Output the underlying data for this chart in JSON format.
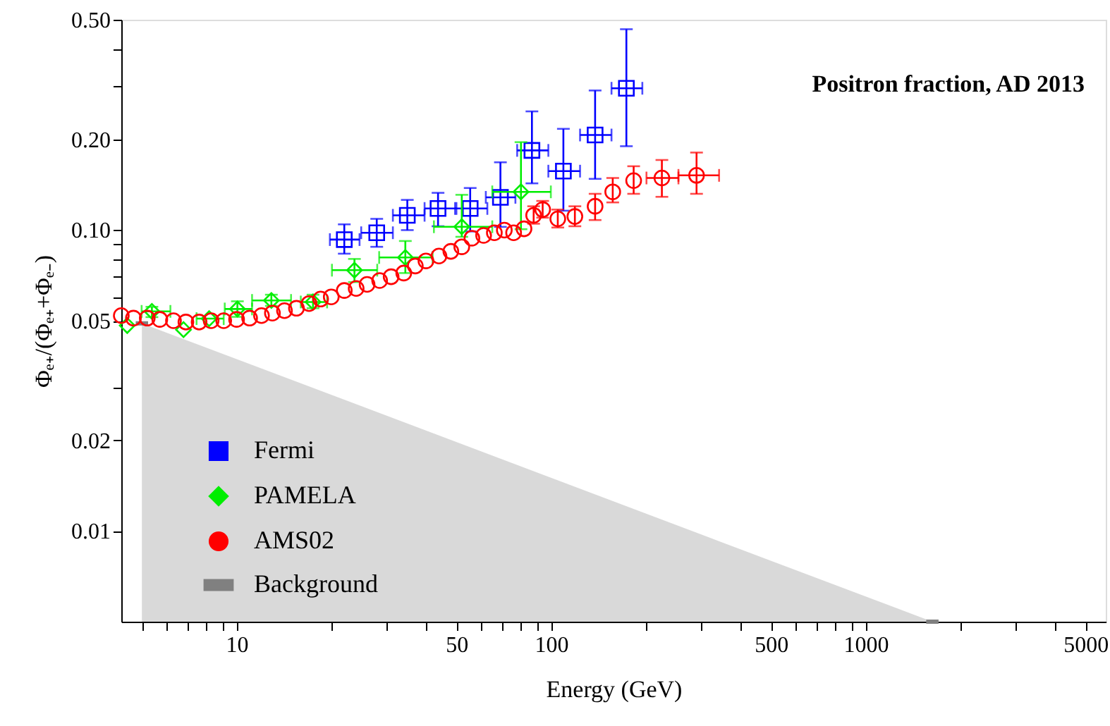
{
  "chart_data": {
    "type": "scatter",
    "title": "Positron fraction, AD 2013",
    "xlabel": "Energy (GeV)",
    "ylabel": "Φₑ₊/(Φₑ₊+Φₑ₋)",
    "log": "xy",
    "grid": false,
    "legend": "bottom left",
    "xlim": [
      4.3,
      5800
    ],
    "ylim": [
      0.005,
      0.5
    ],
    "xticks": [
      {
        "value": 5,
        "label": null
      },
      {
        "value": 6,
        "label": null
      },
      {
        "value": 7,
        "label": null
      },
      {
        "value": 8,
        "label": null
      },
      {
        "value": 9,
        "label": null
      },
      10,
      {
        "value": 20,
        "label": null
      },
      {
        "value": 30,
        "label": null
      },
      {
        "value": 40,
        "label": null
      },
      50,
      {
        "value": 60,
        "label": null
      },
      {
        "value": 70,
        "label": null
      },
      {
        "value": 80,
        "label": null
      },
      {
        "value": 90,
        "label": null
      },
      100,
      {
        "value": 200,
        "label": null
      },
      {
        "value": 300,
        "label": null
      },
      {
        "value": 400,
        "label": null
      },
      500,
      {
        "value": 600,
        "label": null
      },
      {
        "value": 700,
        "label": null
      },
      {
        "value": 800,
        "label": null
      },
      {
        "value": 900,
        "label": null
      },
      1000,
      {
        "value": 2000,
        "label": null
      },
      {
        "value": 3000,
        "label": null
      },
      {
        "value": 4000,
        "label": null
      },
      5000
    ],
    "yticks": [
      {
        "value": 0.01,
        "label": "0.01"
      },
      {
        "value": 0.02,
        "label": "0.02"
      },
      {
        "value": 0.03,
        "label": null
      },
      {
        "value": 0.05,
        "label": "0.05"
      },
      {
        "value": 0.06,
        "label": null
      },
      {
        "value": 0.07,
        "label": null
      },
      {
        "value": 0.08,
        "label": null
      },
      {
        "value": 0.09,
        "label": null
      },
      {
        "value": 0.1,
        "label": "0.10"
      },
      {
        "value": 0.2,
        "label": "0.20"
      },
      {
        "value": 0.3,
        "label": null
      },
      {
        "value": 0.4,
        "label": null
      },
      {
        "value": 0.5,
        "label": "0.50"
      }
    ],
    "series": [
      {
        "name": "Fermi",
        "color": "#0000ff",
        "marker": "square",
        "x": [
          22.0,
          27.9,
          34.9,
          43.7,
          55.3,
          69.0,
          86.9,
          109.4,
          138,
          173.5
        ],
        "values": [
          0.093,
          0.098,
          0.112,
          0.118,
          0.118,
          0.1285,
          0.184,
          0.157,
          0.207,
          0.296
        ],
        "errors": [
          [
            0.0835,
            0.1045
          ],
          [
            0.088,
            0.109
          ],
          [
            0.1,
            0.126
          ],
          [
            0.103,
            0.133
          ],
          [
            0.099,
            0.138
          ],
          [
            0.1025,
            0.168
          ],
          [
            0.143,
            0.248
          ],
          [
            0.116,
            0.217
          ],
          [
            0.148,
            0.291
          ],
          [
            0.19,
            0.465
          ]
        ],
        "xerrors": [
          [
            19.8,
            24.6
          ],
          [
            24.9,
            31.4
          ],
          [
            31.4,
            39.6
          ],
          [
            39.6,
            50
          ],
          [
            49.5,
            62.7
          ],
          [
            62,
            77
          ],
          [
            78,
            98
          ],
          [
            98,
            123.6
          ],
          [
            123.6,
            155.6
          ],
          [
            155.6,
            195
          ]
        ]
      },
      {
        "name": "PAMELA",
        "color": "#00ee00",
        "marker": "diamond",
        "x": [
          4.49,
          5.38,
          6.78,
          8.18,
          10.06,
          12.9,
          17.5,
          23.7,
          34.4,
          52,
          80.2
        ],
        "values": [
          0.0482,
          0.0537,
          0.0467,
          0.0508,
          0.0547,
          0.0584,
          0.0577,
          0.0736,
          0.0811,
          0.1026,
          0.134
        ],
        "errors": [
          null,
          [
            0.0514,
            0.0556
          ],
          null,
          null,
          [
            0.0515,
            0.058
          ],
          [
            0.056,
            0.061
          ],
          [
            0.055,
            0.061
          ],
          [
            0.0672,
            0.0802
          ],
          [
            0.072,
            0.092
          ],
          [
            0.095,
            0.131
          ],
          [
            0.1007,
            0.196
          ]
        ],
        "xerrors": [
          null,
          [
            4.99,
            6.16
          ],
          null,
          [
            7.46,
            9.1
          ],
          [
            9.17,
            11.2
          ],
          [
            11.2,
            14.9
          ],
          [
            16,
            19.4
          ],
          [
            20.1,
            28.0
          ],
          [
            28.4,
            42.0
          ],
          [
            42.4,
            65.0
          ],
          [
            65,
            99.8
          ]
        ]
      },
      {
        "name": "AMS02",
        "color": "#ff0000",
        "marker": "circle",
        "x": [
          4.3,
          4.7,
          5.2,
          5.7,
          6.3,
          6.9,
          7.6,
          8.3,
          9.1,
          10,
          11,
          12,
          13,
          14.2,
          15.5,
          17,
          18.5,
          20,
          22,
          24,
          26,
          28.5,
          31,
          34,
          37,
          40,
          44,
          48,
          52,
          56,
          61,
          66,
          71,
          76,
          82,
          88,
          94,
          105,
          119,
          138,
          157,
          183,
          225,
          290
        ],
        "values": [
          0.052,
          0.051,
          0.051,
          0.0505,
          0.05,
          0.0495,
          0.0495,
          0.05,
          0.05,
          0.0505,
          0.051,
          0.052,
          0.053,
          0.054,
          0.055,
          0.057,
          0.059,
          0.06,
          0.063,
          0.064,
          0.066,
          0.068,
          0.07,
          0.072,
          0.076,
          0.079,
          0.082,
          0.085,
          0.088,
          0.094,
          0.096,
          0.098,
          0.1,
          0.098,
          0.101,
          0.112,
          0.117,
          0.109,
          0.111,
          0.12,
          0.134,
          0.146,
          0.149,
          0.152
        ],
        "errors": [
          null,
          null,
          null,
          null,
          null,
          null,
          null,
          null,
          null,
          null,
          null,
          null,
          null,
          null,
          null,
          null,
          null,
          null,
          null,
          null,
          null,
          null,
          null,
          null,
          null,
          null,
          null,
          null,
          null,
          null,
          null,
          null,
          null,
          null,
          null,
          [
            0.105,
            0.12
          ],
          [
            0.11,
            0.125
          ],
          [
            0.102,
            0.117
          ],
          [
            0.103,
            0.12
          ],
          [
            0.108,
            0.132
          ],
          [
            0.1236,
            0.149
          ],
          [
            0.132,
            0.163
          ],
          [
            0.129,
            0.171
          ],
          [
            0.132,
            0.181
          ]
        ],
        "xerrors": [
          null,
          null,
          null,
          null,
          null,
          null,
          null,
          null,
          null,
          null,
          null,
          null,
          null,
          null,
          null,
          null,
          null,
          null,
          null,
          null,
          null,
          null,
          null,
          null,
          null,
          null,
          null,
          null,
          null,
          null,
          null,
          null,
          null,
          null,
          null,
          null,
          null,
          null,
          null,
          null,
          null,
          null,
          [
            201,
            254
          ],
          [
            254,
            342
          ]
        ]
      },
      {
        "name": "Background",
        "type": "area",
        "color": "#808080",
        "x": [
          5,
          1630
        ],
        "values": [
          0.049,
          0.005
        ]
      }
    ]
  }
}
